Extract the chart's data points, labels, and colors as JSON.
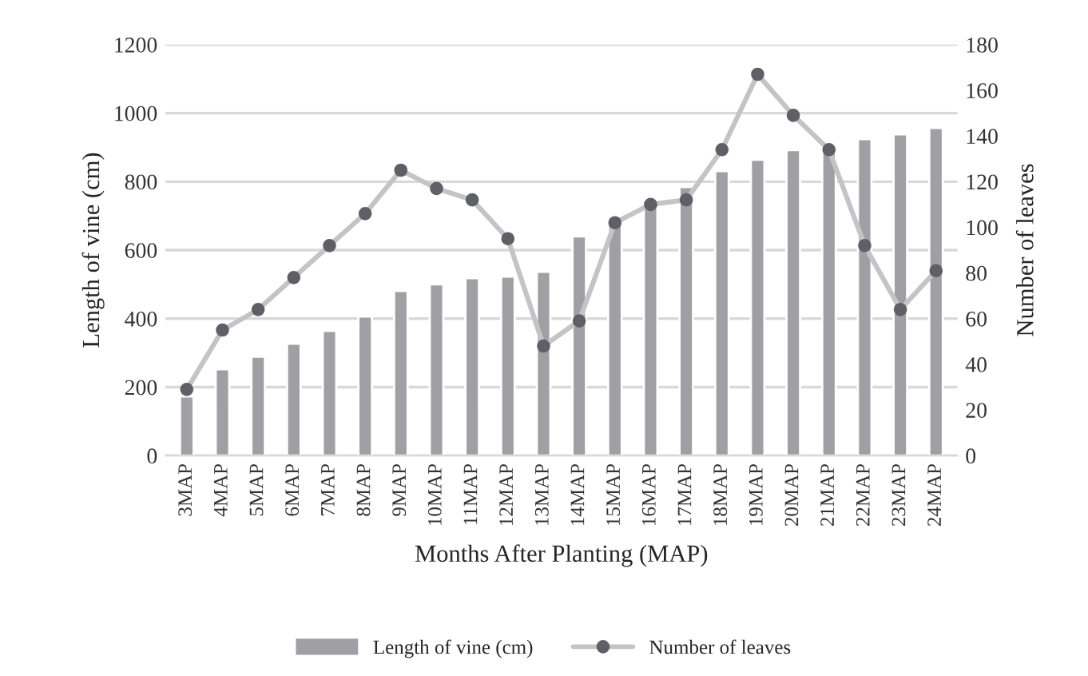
{
  "chart_data": {
    "type": "bar",
    "xlabel": "Months After Planting (MAP)",
    "ylabel": "Length of vine (cm)",
    "y2label": "Number of leaves",
    "categories": [
      "3MAP",
      "4MAP",
      "5MAP",
      "6MAP",
      "7MAP",
      "8MAP",
      "9MAP",
      "10MAP",
      "11MAP",
      "12MAP",
      "13MAP",
      "14MAP",
      "15MAP",
      "16MAP",
      "17MAP",
      "18MAP",
      "19MAP",
      "20MAP",
      "21MAP",
      "22MAP",
      "23MAP",
      "24MAP"
    ],
    "series": [
      {
        "name": "Length of vine (cm)",
        "color": "#a0a0a4",
        "values": [
          173,
          252,
          289,
          327,
          364,
          406,
          481,
          500,
          518,
          523,
          537,
          640,
          677,
          733,
          784,
          831,
          864,
          892,
          900,
          924,
          938,
          957
        ]
      },
      {
        "name": "Number of leaves",
        "type": "line",
        "axis": "y2",
        "color": "#c4c4c6",
        "marker": "circle",
        "values": [
          29,
          55,
          64,
          78,
          92,
          106,
          125,
          117,
          112,
          95,
          48,
          59,
          102,
          110,
          112,
          134,
          167,
          149,
          134,
          92,
          64,
          81
        ]
      }
    ],
    "ylim": [
      0,
      1200
    ],
    "yticks": [
      0,
      200,
      400,
      600,
      800,
      1000,
      1200
    ],
    "y2lim": [
      0,
      180
    ],
    "y2ticks": [
      0,
      20,
      40,
      60,
      80,
      100,
      120,
      140,
      160,
      180
    ],
    "grid": "y",
    "legend": "bottom"
  }
}
